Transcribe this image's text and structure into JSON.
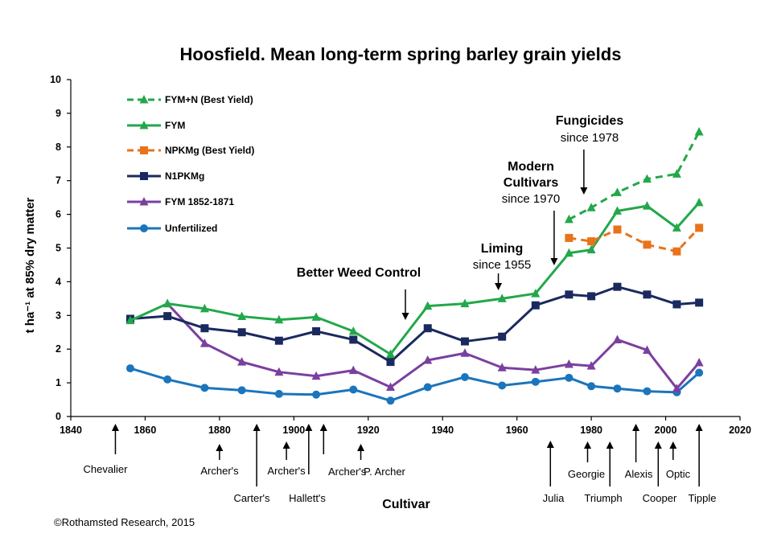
{
  "chart_data": {
    "type": "line",
    "title": "Hoosfield. Mean long-term spring barley grain yields",
    "ylabel": "t ha⁻¹ at 85% dry matter",
    "xlabel": "Cultivar",
    "xlim": [
      1840,
      2020
    ],
    "ylim": [
      0,
      10
    ],
    "x_ticks": [
      1840,
      1860,
      1880,
      1900,
      1920,
      1940,
      1960,
      1980,
      2000,
      2020
    ],
    "y_ticks": [
      0,
      1,
      2,
      3,
      4,
      5,
      6,
      7,
      8,
      9,
      10
    ],
    "grid": false,
    "legend_position": "top-left",
    "series": [
      {
        "name": "FYM+N (Best Yield)",
        "color": "#22a84a",
        "dash": true,
        "marker": "triangle",
        "x": [
          1974,
          1980,
          1987,
          1995,
          2003,
          2009
        ],
        "y": [
          5.85,
          6.2,
          6.65,
          7.05,
          7.2,
          8.45
        ]
      },
      {
        "name": "FYM",
        "color": "#22a84a",
        "dash": false,
        "marker": "triangle",
        "x": [
          1856,
          1866,
          1876,
          1886,
          1896,
          1906,
          1916,
          1926,
          1936,
          1946,
          1956,
          1965,
          1974,
          1980,
          1987,
          1995,
          2003,
          2009
        ],
        "y": [
          2.85,
          3.35,
          3.2,
          2.97,
          2.87,
          2.95,
          2.53,
          1.85,
          3.28,
          3.35,
          3.5,
          3.65,
          4.85,
          4.95,
          6.1,
          6.25,
          5.6,
          6.35
        ]
      },
      {
        "name": "NPKMg (Best Yield)",
        "color": "#e8731c",
        "dash": true,
        "marker": "square",
        "x": [
          1974,
          1980,
          1987,
          1995,
          2003,
          2009
        ],
        "y": [
          5.3,
          5.2,
          5.55,
          5.1,
          4.9,
          5.6
        ]
      },
      {
        "name": "N1PKMg",
        "color": "#1a2a5e",
        "dash": false,
        "marker": "square",
        "x": [
          1856,
          1866,
          1876,
          1886,
          1896,
          1906,
          1916,
          1926,
          1936,
          1946,
          1956,
          1965,
          1974,
          1980,
          1987,
          1995,
          2003,
          2009
        ],
        "y": [
          2.9,
          2.98,
          2.62,
          2.5,
          2.25,
          2.53,
          2.28,
          1.62,
          2.62,
          2.23,
          2.37,
          3.3,
          3.62,
          3.57,
          3.85,
          3.62,
          3.33,
          3.38
        ]
      },
      {
        "name": "FYM 1852-1871",
        "color": "#7b3fa0",
        "dash": false,
        "marker": "triangle",
        "x": [
          1866,
          1876,
          1886,
          1896,
          1906,
          1916,
          1926,
          1936,
          1946,
          1956,
          1965,
          1974,
          1980,
          1987,
          1995,
          2003,
          2009
        ],
        "y": [
          3.35,
          2.17,
          1.62,
          1.32,
          1.2,
          1.37,
          0.87,
          1.67,
          1.88,
          1.45,
          1.38,
          1.55,
          1.5,
          2.28,
          1.97,
          0.83,
          1.6
        ]
      },
      {
        "name": "Unfertilized",
        "color": "#1b75bc",
        "dash": false,
        "marker": "circle",
        "x": [
          1856,
          1866,
          1876,
          1886,
          1896,
          1906,
          1916,
          1926,
          1936,
          1946,
          1956,
          1965,
          1974,
          1980,
          1987,
          1995,
          2003,
          2009
        ],
        "y": [
          1.43,
          1.1,
          0.85,
          0.78,
          0.67,
          0.65,
          0.8,
          0.47,
          0.87,
          1.17,
          0.92,
          1.03,
          1.15,
          0.9,
          0.83,
          0.75,
          0.72,
          1.3
        ]
      }
    ],
    "annotations": [
      {
        "bold": "Fungicides",
        "regular": "since 1978",
        "x": 1978
      },
      {
        "bold": "Modern",
        "bold2": "Cultivars",
        "regular": "since 1970",
        "x": 1970
      },
      {
        "bold": "Liming",
        "regular": "since 1955",
        "x": 1955
      },
      {
        "bold": "Better Weed Control",
        "x": 1930
      }
    ],
    "cultivars": [
      {
        "label": "Chevalier",
        "x": 1852
      },
      {
        "label": "Archer's",
        "x": 1880
      },
      {
        "label": "Carter's",
        "x": 1890
      },
      {
        "label": "Archer's",
        "x": 1898
      },
      {
        "label": "Hallett's",
        "x": 1904
      },
      {
        "label": "Archer's",
        "x": 1908
      },
      {
        "label": "P. Archer",
        "x": 1918
      },
      {
        "label": "Julia",
        "x": 1969
      },
      {
        "label": "Georgie",
        "x": 1979
      },
      {
        "label": "Triumph",
        "x": 1985
      },
      {
        "label": "Alexis",
        "x": 1992
      },
      {
        "label": "Cooper",
        "x": 1998
      },
      {
        "label": "Optic",
        "x": 2002
      },
      {
        "label": "Tipple",
        "x": 2009
      }
    ]
  },
  "copyright": "©Rothamsted Research, 2015"
}
